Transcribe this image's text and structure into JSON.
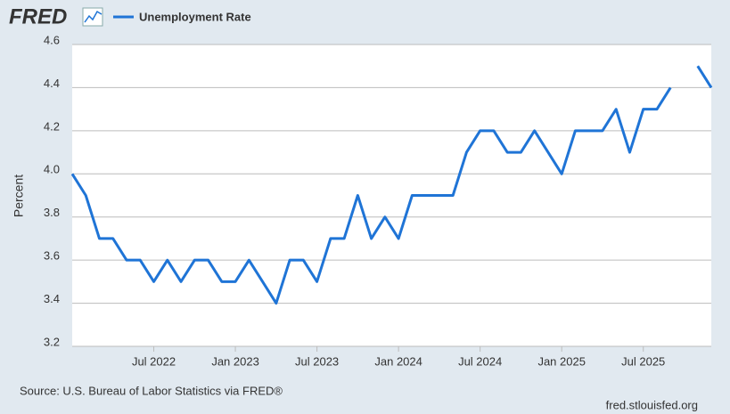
{
  "logo": "FRED",
  "chart_data": {
    "type": "line",
    "y_label": "Percent",
    "source": "Source: U.S. Bureau of Labor Statistics via FRED®",
    "site": "fred.stlouisfed.org",
    "categories": [
      null,
      null,
      null,
      null,
      null,
      null,
      "Jul 2022",
      null,
      null,
      null,
      null,
      null,
      "Jan 2023",
      null,
      null,
      null,
      null,
      null,
      "Jul 2023",
      null,
      null,
      null,
      null,
      null,
      "Jan 2024",
      null,
      null,
      null,
      null,
      null,
      "Jul 2024",
      null,
      null,
      null,
      null,
      null,
      "Jan 2025",
      null,
      null,
      null,
      null,
      null,
      "Jul 2025",
      null,
      null,
      null,
      null,
      null
    ],
    "series": [
      {
        "name": "Unemployment Rate",
        "color": "#1f74d6",
        "values": [
          4.0,
          3.9,
          3.7,
          3.7,
          3.6,
          3.6,
          3.5,
          3.6,
          3.5,
          3.6,
          3.6,
          3.5,
          3.5,
          3.6,
          3.5,
          3.4,
          3.6,
          3.6,
          3.5,
          3.7,
          3.7,
          3.9,
          3.7,
          3.8,
          3.7,
          3.9,
          3.9,
          3.9,
          3.9,
          4.1,
          4.2,
          4.2,
          4.1,
          4.1,
          4.2,
          4.1,
          4.0,
          4.2,
          4.2,
          4.2,
          4.3,
          4.1,
          4.3,
          4.3,
          4.4,
          null,
          4.5,
          4.4
        ]
      }
    ],
    "ylim": [
      3.2,
      4.6
    ],
    "yticks": [
      3.2,
      3.4,
      3.6,
      3.8,
      {
        "value": 4,
        "label": "4.0"
      },
      4.2,
      4.4,
      4.6
    ],
    "grid": true
  }
}
